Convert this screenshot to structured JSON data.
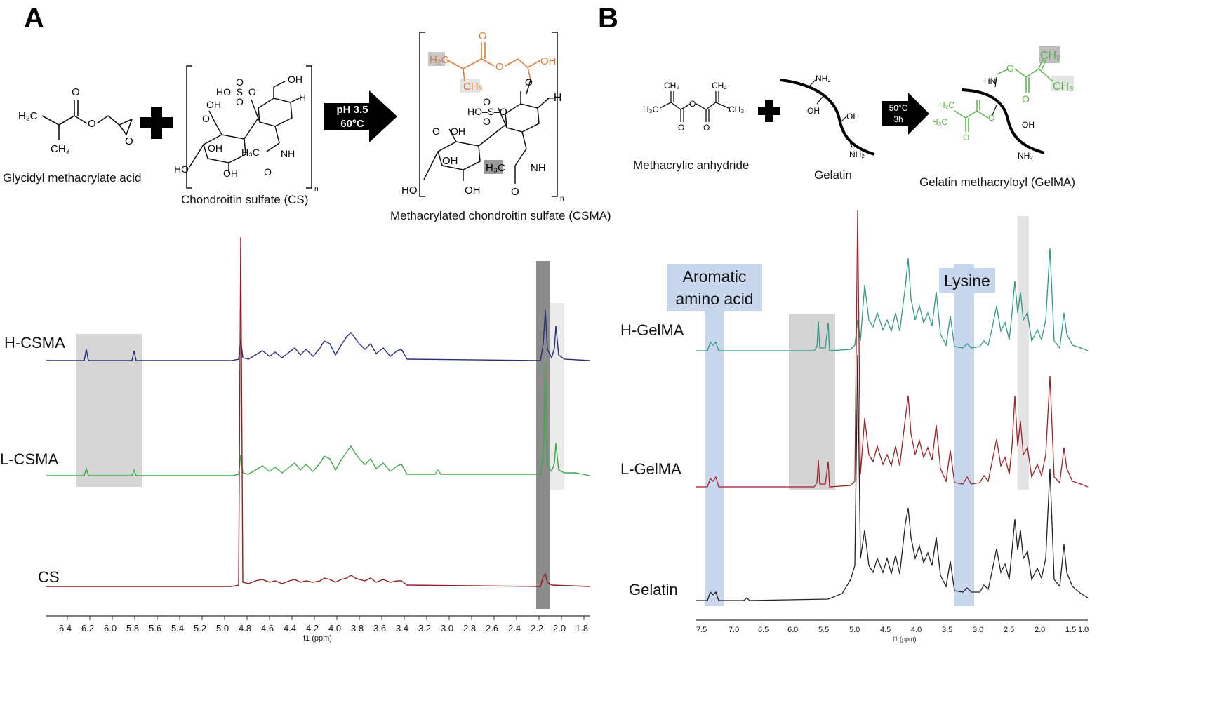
{
  "panelA": {
    "letter": "A",
    "reagent1_caption": "Glycidyl methacrylate acid",
    "reagent2_caption": "Chondroitin sulfate (CS)",
    "product_caption": "Methacrylated chondroitin sulfate (CSMA)",
    "conditions": {
      "line1": "pH 3.5",
      "line2": "60°C"
    },
    "chem_labels": {
      "h2c": "H₂C",
      "ch3": "CH₃",
      "o": "O",
      "ho": "HO",
      "oh": "OH",
      "h": "H",
      "hoso": "HO–S–O",
      "h3c": "H₃C",
      "nh": "NH",
      "n": "n",
      "cooh": "OH"
    },
    "spectrum": {
      "axis_title": "f1 (ppm)",
      "ticks": [
        "6.4",
        "6.2",
        "6.0",
        "5.8",
        "5.6",
        "5.4",
        "5.2",
        "5.0",
        "4.8",
        "4.6",
        "4.4",
        "4.2",
        "4.0",
        "3.8",
        "3.6",
        "3.4",
        "3.2",
        "3.0",
        "2.8",
        "2.6",
        "2.4",
        "2.2",
        "2.0",
        "1.8"
      ],
      "traces": [
        {
          "name": "H-CSMA",
          "color": "#2a2f7a"
        },
        {
          "name": "L-CSMA",
          "color": "#3ea84a"
        },
        {
          "name": "CS",
          "color": "#8e1f22"
        }
      ],
      "highlight_colors": {
        "dark": "#8c8c8c",
        "light": "#d8d8d8",
        "lighter": "#ebebeb"
      }
    }
  },
  "panelB": {
    "letter": "B",
    "reagent1_caption": "Methacrylic anhydride",
    "reagent2_caption": "Gelatin",
    "product_caption": "Gelatin methacryloyl (GelMA)",
    "conditions": {
      "line1": "50°C",
      "line2": "3h"
    },
    "chem_labels": {
      "ch2": "CH₂",
      "h3c": "H₃C",
      "ch3": "CH₃",
      "nh2": "NH₂",
      "oh": "OH",
      "hn": "HN",
      "h2c": "H₂C"
    },
    "spectrum": {
      "axis_title": "f1 (ppm)",
      "ticks": [
        "7.5",
        "7.0",
        "6.5",
        "6.0",
        "5.5",
        "5.0",
        "4.5",
        "4.0",
        "3.5",
        "3.0",
        "2.5",
        "2.0",
        "1.5",
        "1.0"
      ],
      "traces": [
        {
          "name": "H-GelMA",
          "color": "#2f9a84"
        },
        {
          "name": "L-GelMA",
          "color": "#9e2227"
        },
        {
          "name": "Gelatin",
          "color": "#222222"
        }
      ],
      "box_labels": {
        "aromatic": "Aromatic amino acid",
        "lysine": "Lysine"
      },
      "highlight_colors": {
        "blue": "#c9d7ee",
        "grey": "#d4d4d4"
      }
    }
  }
}
